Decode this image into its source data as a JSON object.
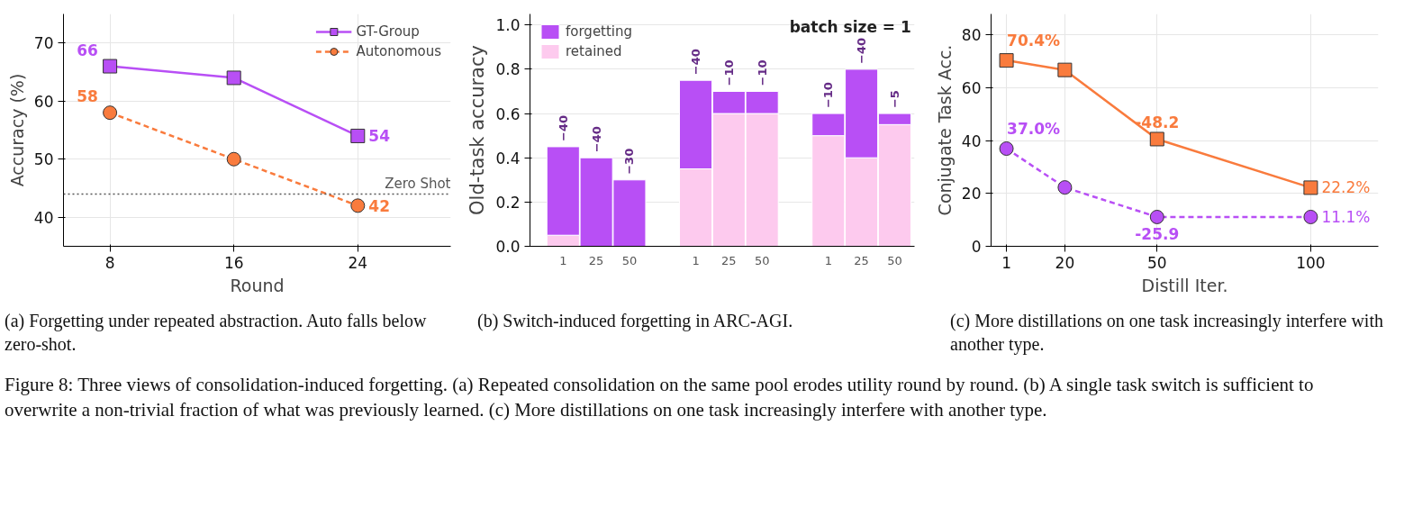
{
  "chart_data": [
    {
      "type": "line",
      "title": "(a) Forgetting under repeated abstraction. Auto falls below zero-shot.",
      "xlabel": "Round",
      "ylabel": "Accuracy (%)",
      "x": [
        8,
        16,
        24
      ],
      "xlim": [
        5,
        30
      ],
      "xticks": [
        8,
        16,
        24
      ],
      "ylim": [
        35,
        75
      ],
      "yticks": [
        40,
        50,
        60,
        70
      ],
      "grid": true,
      "legend": "top right",
      "series": [
        {
          "name": "GT-Group",
          "color": "#b84ff5",
          "values": [
            66,
            64,
            54
          ],
          "value_labels": [
            "66",
            null,
            "54"
          ],
          "marker": "square",
          "line_style": "solid"
        },
        {
          "name": "Autonomous",
          "color": "#f97b3d",
          "values": [
            58,
            50,
            42
          ],
          "value_labels": [
            "58",
            null,
            "42"
          ],
          "marker": "circle",
          "line_style": "dashed"
        }
      ],
      "ref_lines": [
        {
          "axis": "y",
          "value": 44,
          "label": "Zero Shot",
          "color": "#555555",
          "line_style": "dotted"
        }
      ]
    },
    {
      "type": "bar",
      "stacked": true,
      "title": "(b) Switch-induced forgetting in ARC-AGI.",
      "ylabel": "Old-task accuracy",
      "categories": [
        "1",
        "25",
        "50",
        null,
        "1",
        "25",
        "50",
        null,
        "1",
        "25",
        "50"
      ],
      "ylim": [
        0,
        1.05
      ],
      "yticks": [
        {
          "value": 0,
          "label": "0.0"
        },
        0.2,
        0.4,
        0.6,
        0.8,
        {
          "value": 1,
          "label": "1.0"
        }
      ],
      "grid": "y",
      "legend": "top left",
      "subtitle": "batch size = 1",
      "annotations": [
        "−40",
        "−40",
        "−30",
        "−40",
        "−10",
        "−10",
        "−10",
        "−40",
        "−5"
      ],
      "series": [
        {
          "name": "retained",
          "color": "#fdcaee",
          "values": [
            0.05,
            0,
            0,
            null,
            0.35,
            0.6,
            0.6,
            null,
            0.5,
            0.4,
            0.55
          ]
        },
        {
          "name": "forgetting",
          "color": "#b84ff5",
          "values": [
            0.4,
            0.4,
            0.3,
            null,
            0.4,
            0.1,
            0.1,
            null,
            0.1,
            0.4,
            0.05
          ]
        }
      ]
    },
    {
      "type": "line",
      "title": "(c) More distillations on one task increasingly interfere with another type.",
      "xlabel": "Distill Iter.",
      "ylabel": "Conjugate Task Acc.",
      "x": [
        1,
        20,
        50,
        100
      ],
      "xlim": [
        -4,
        122
      ],
      "xticks": [
        1,
        20,
        50,
        100
      ],
      "ylim": [
        0,
        88
      ],
      "yticks": [
        0,
        20,
        40,
        60,
        80
      ],
      "grid": true,
      "annotations": [
        {
          "text": "-48.2",
          "x": 50,
          "y": 40.6
        },
        {
          "text": "-25.9",
          "x": 50,
          "y": 11.1
        }
      ],
      "series": [
        {
          "color": "#f97b3d",
          "values": [
            70.4,
            66.8,
            40.6,
            22.2
          ],
          "value_labels": [
            "70.4%",
            null,
            null,
            "22.2%"
          ],
          "marker": "square",
          "line_style": "solid"
        },
        {
          "color": "#b84ff5",
          "values": [
            37.0,
            22.3,
            11.1,
            11.1
          ],
          "value_labels": [
            "37.0%",
            null,
            null,
            "11.1%"
          ],
          "marker": "circle",
          "line_style": "dashed"
        }
      ]
    },
    {
      "type": "other",
      "title": "Figure 8: Three views of consolidation-induced forgetting. (a) Repeated consolidation on the same pool erodes utility round by round. (b) A single task switch is sufficient to overwrite a non-trivial fraction of what was previously learned. (c) More distillations on one task increasingly interfere with another type."
    }
  ]
}
